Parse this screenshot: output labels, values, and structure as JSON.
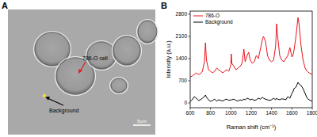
{
  "image_panel": {
    "label": "A",
    "annotations": [
      "786-O cell",
      "Background"
    ],
    "scale_bar": "5μm"
  },
  "chart_data": {
    "type": "line",
    "annotations": [
      "B"
    ],
    "x_label": "Raman shift (cm⁻¹)",
    "y_label": "Intensity (a.u.)",
    "x": [
      600,
      620,
      640,
      660,
      680,
      700,
      720,
      740,
      750,
      760,
      780,
      800,
      820,
      840,
      860,
      880,
      900,
      920,
      940,
      960,
      980,
      1000,
      1004,
      1010,
      1030,
      1050,
      1070,
      1090,
      1110,
      1128,
      1140,
      1160,
      1175,
      1190,
      1210,
      1230,
      1250,
      1270,
      1290,
      1310,
      1320,
      1340,
      1360,
      1380,
      1400,
      1420,
      1440,
      1450,
      1460,
      1480,
      1500,
      1520,
      1540,
      1560,
      1580,
      1600,
      1610,
      1620,
      1640,
      1660,
      1670,
      1690,
      1710,
      1730,
      1750,
      1770,
      1800
    ],
    "series": [
      {
        "name": "786-O",
        "color": "#e8141c",
        "values": [
          820,
          850,
          900,
          950,
          900,
          920,
          1000,
          1300,
          1900,
          1350,
          1050,
          1000,
          950,
          1000,
          1100,
          1050,
          1000,
          950,
          1000,
          1050,
          1000,
          1200,
          1550,
          1250,
          1150,
          1050,
          1100,
          1150,
          1250,
          1700,
          1300,
          1500,
          1600,
          1350,
          1250,
          1300,
          1500,
          1400,
          1700,
          2000,
          2100,
          1950,
          1500,
          1350,
          1300,
          1350,
          1800,
          2500,
          2100,
          1500,
          1350,
          1300,
          1400,
          1500,
          1750,
          1450,
          1500,
          1650,
          2100,
          2700,
          2500,
          1800,
          1350,
          1100,
          1000,
          950,
          900
        ]
      },
      {
        "name": "Background",
        "color": "#000000",
        "values": [
          50,
          100,
          200,
          150,
          80,
          100,
          150,
          200,
          250,
          180,
          100,
          50,
          80,
          120,
          60,
          100,
          80,
          60,
          100,
          120,
          80,
          100,
          90,
          100,
          120,
          80,
          60,
          100,
          80,
          120,
          100,
          150,
          130,
          100,
          120,
          80,
          100,
          150,
          120,
          180,
          150,
          120,
          100,
          80,
          100,
          150,
          100,
          150,
          120,
          100,
          130,
          120,
          100,
          200,
          150,
          300,
          350,
          450,
          500,
          650,
          600,
          550,
          450,
          300,
          150,
          100,
          50
        ]
      }
    ],
    "xlim": [
      600,
      1800
    ],
    "xticks": [
      600,
      800,
      1000,
      1200,
      1400,
      1600,
      1800
    ],
    "ylim": [
      -150,
      2900
    ],
    "yticks": [
      0,
      700,
      1400,
      2100,
      2800
    ],
    "legend": "upper left",
    "grid": false
  }
}
